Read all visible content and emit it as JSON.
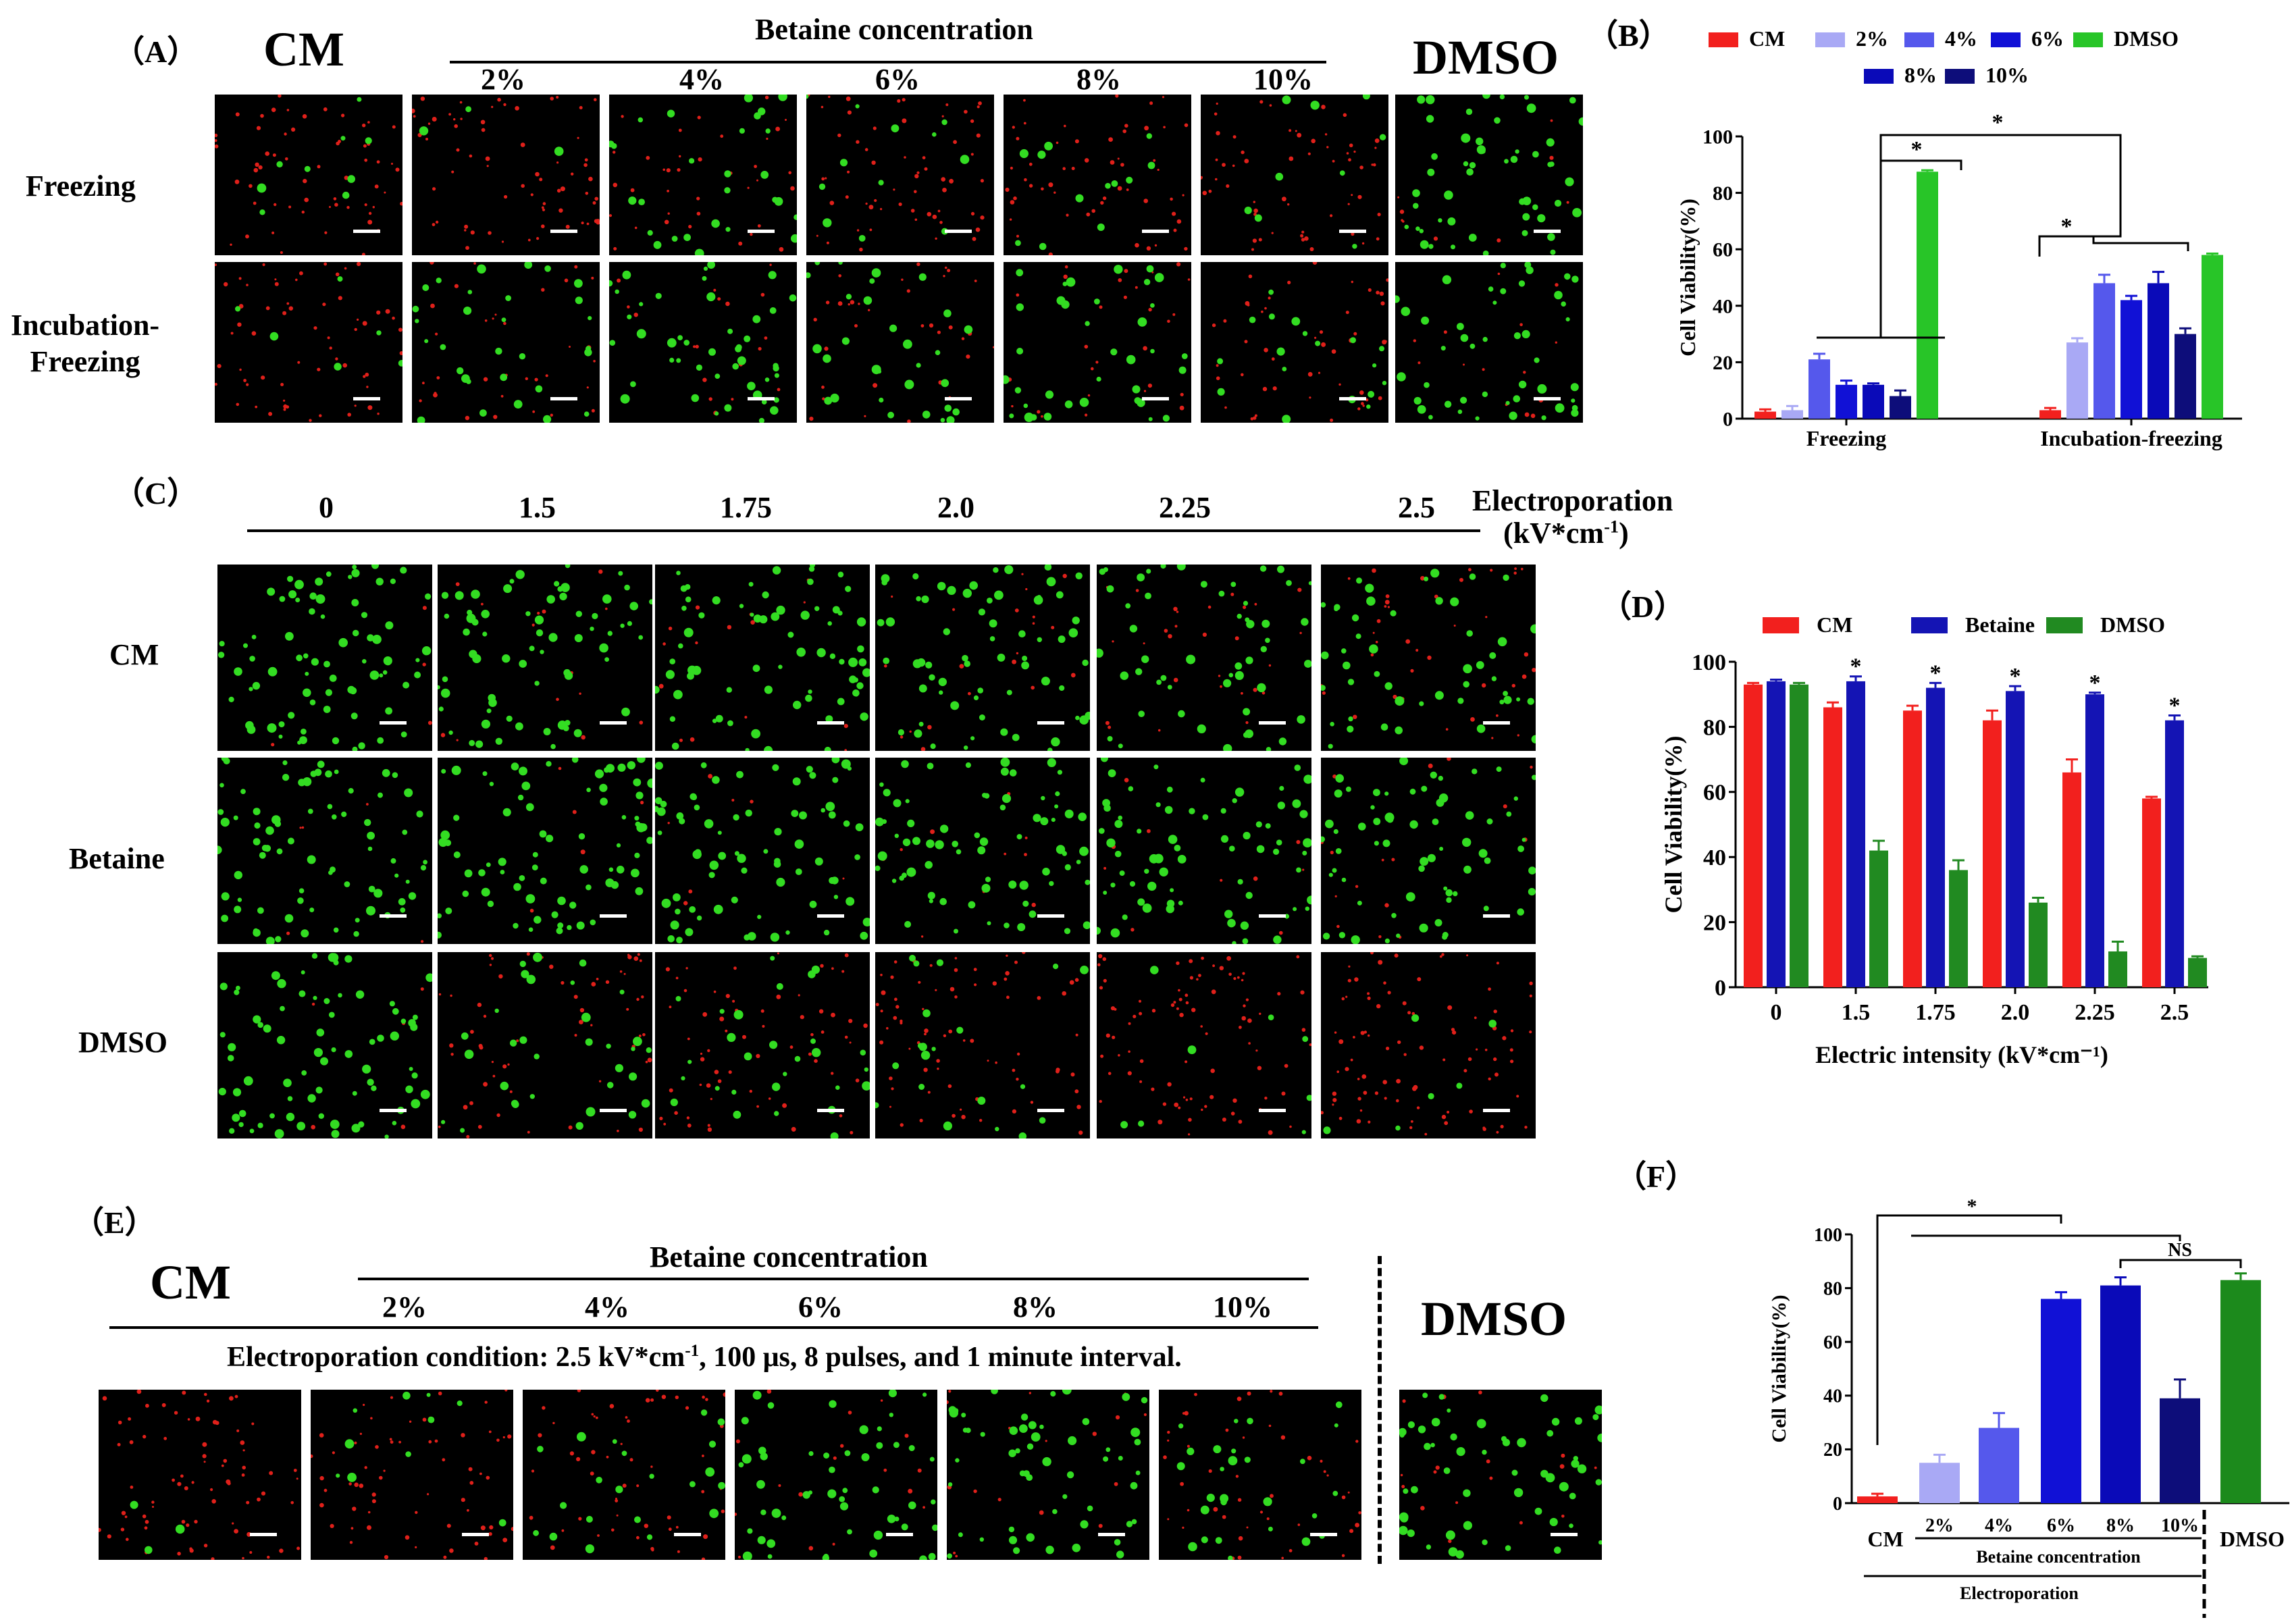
{
  "panel_labels": [
    "（A）",
    "（B）",
    "（C）",
    "（D）",
    "（E）",
    "（F）"
  ],
  "colors": {
    "cm_red": "#f2201e",
    "b2": "#a9a9f5",
    "b4": "#5558ec",
    "b6": "#1111d6",
    "b8": "#0a0ab8",
    "b10": "#0d0d7a",
    "betaine_blue": "#1414b4",
    "dmso_green_b": "#28c528",
    "dmso_green_d": "#218a21",
    "dmso_green_f": "#1c8a1c",
    "live_green": "#33dd22",
    "dead_red": "#e0201a"
  },
  "panel_a": {
    "cm": "CM",
    "betaine_header": "Betaine concentration",
    "concentrations": [
      "2%",
      "4%",
      "6%",
      "8%",
      "10%"
    ],
    "dmso": "DMSO",
    "row_labels": [
      "Freezing",
      "Incubation-\nFreezing"
    ],
    "images": [
      [
        {
          "live": 0.15,
          "dead": 0.8
        },
        {
          "live": 0.05,
          "dead": 0.9
        },
        {
          "live": 0.45,
          "dead": 0.5
        },
        {
          "live": 0.2,
          "dead": 0.8
        },
        {
          "live": 0.2,
          "dead": 0.75
        },
        {
          "live": 0.15,
          "dead": 0.8
        },
        {
          "live": 0.85,
          "dead": 0.15
        }
      ],
      [
        {
          "live": 0.1,
          "dead": 0.85
        },
        {
          "live": 0.5,
          "dead": 0.45
        },
        {
          "live": 0.75,
          "dead": 0.25
        },
        {
          "live": 0.5,
          "dead": 0.45
        },
        {
          "live": 0.6,
          "dead": 0.4
        },
        {
          "live": 0.3,
          "dead": 0.65
        },
        {
          "live": 0.75,
          "dead": 0.2
        }
      ]
    ]
  },
  "panel_c": {
    "field_labels": [
      "0",
      "1.5",
      "1.75",
      "2.0",
      "2.25",
      "2.5"
    ],
    "axis_title": "Electroporation",
    "axis_unit": "(kV*cm-1)",
    "row_labels": [
      "CM",
      "Betaine",
      "DMSO"
    ],
    "images": [
      [
        {
          "live": 0.95,
          "dead": 0.05
        },
        {
          "live": 0.85,
          "dead": 0.15
        },
        {
          "live": 0.85,
          "dead": 0.15
        },
        {
          "live": 0.8,
          "dead": 0.2
        },
        {
          "live": 0.65,
          "dead": 0.3
        },
        {
          "live": 0.6,
          "dead": 0.4
        }
      ],
      [
        {
          "live": 0.95,
          "dead": 0.05
        },
        {
          "live": 0.95,
          "dead": 0.05
        },
        {
          "live": 0.93,
          "dead": 0.07
        },
        {
          "live": 0.9,
          "dead": 0.1
        },
        {
          "live": 0.9,
          "dead": 0.1
        },
        {
          "live": 0.82,
          "dead": 0.18
        }
      ],
      [
        {
          "live": 0.95,
          "dead": 0.05
        },
        {
          "live": 0.4,
          "dead": 0.6
        },
        {
          "live": 0.35,
          "dead": 0.65
        },
        {
          "live": 0.25,
          "dead": 0.75
        },
        {
          "live": 0.1,
          "dead": 0.9
        },
        {
          "live": 0.08,
          "dead": 0.92
        }
      ]
    ]
  },
  "panel_e": {
    "cm": "CM",
    "betaine_header": "Betaine concentration",
    "concentrations": [
      "2%",
      "4%",
      "6%",
      "8%",
      "10%"
    ],
    "dmso": "DMSO",
    "condition": "Electroporation condition: 2.5 kV*cm-1, 100 μs, 8 pulses, and 1 minute interval.",
    "images": [
      {
        "live": 0.05,
        "dead": 0.9
      },
      {
        "live": 0.15,
        "dead": 0.8
      },
      {
        "live": 0.3,
        "dead": 0.65
      },
      {
        "live": 0.75,
        "dead": 0.2
      },
      {
        "live": 0.8,
        "dead": 0.2
      },
      {
        "live": 0.4,
        "dead": 0.55
      },
      {
        "live": 0.8,
        "dead": 0.2
      }
    ]
  },
  "chart_data": [
    {
      "panel": "B",
      "type": "bar",
      "ylabel": "Cell Viability(%)",
      "ylim": [
        0,
        100
      ],
      "yticks": [
        0,
        20,
        40,
        60,
        80,
        100
      ],
      "categories": [
        "Freezing",
        "Incubation-freezing"
      ],
      "legend": [
        "CM",
        "2%",
        "4%",
        "6%",
        "DMSO",
        "8%",
        "10%"
      ],
      "series": [
        {
          "name": "CM",
          "values": [
            2.5,
            3
          ],
          "err": [
            0.8,
            0.8
          ]
        },
        {
          "name": "2%",
          "values": [
            3,
            27
          ],
          "err": [
            1.5,
            1.5
          ]
        },
        {
          "name": "4%",
          "values": [
            21,
            48
          ],
          "err": [
            2,
            3
          ]
        },
        {
          "name": "6%",
          "values": [
            12,
            42
          ],
          "err": [
            1.5,
            1.5
          ]
        },
        {
          "name": "8%",
          "values": [
            12,
            48
          ],
          "err": [
            0.5,
            4
          ]
        },
        {
          "name": "10%",
          "values": [
            8,
            30
          ],
          "err": [
            2,
            2
          ]
        },
        {
          "name": "DMSO",
          "values": [
            87.5,
            58
          ],
          "err": [
            0.5,
            0.5
          ]
        }
      ],
      "annotations": [
        "*",
        "*",
        "*"
      ]
    },
    {
      "panel": "D",
      "type": "bar",
      "xlabel": "Electric intensity (kV*cm-1)",
      "ylabel": "Cell Viability(%)",
      "ylim": [
        0,
        100
      ],
      "yticks": [
        0,
        20,
        40,
        60,
        80,
        100
      ],
      "categories": [
        "0",
        "1.5",
        "1.75",
        "2.0",
        "2.25",
        "2.5"
      ],
      "legend": [
        "CM",
        "Betaine",
        "DMSO"
      ],
      "series": [
        {
          "name": "CM",
          "values": [
            93,
            86,
            85,
            82,
            66,
            58
          ],
          "err": [
            0.5,
            1.5,
            1.5,
            3,
            4,
            0.5
          ]
        },
        {
          "name": "Betaine",
          "values": [
            94,
            94,
            92,
            91,
            90,
            82
          ],
          "err": [
            0.5,
            1.5,
            1.5,
            1.5,
            0.5,
            1.5
          ]
        },
        {
          "name": "DMSO",
          "values": [
            93,
            42,
            36,
            26,
            11,
            9
          ],
          "err": [
            0.5,
            3,
            3,
            1.5,
            3,
            0.5
          ]
        }
      ],
      "annotations": [
        "*",
        "*",
        "*",
        "*",
        "*"
      ]
    },
    {
      "panel": "F",
      "type": "bar",
      "ylabel": "Cell Viability(%)",
      "ylim": [
        0,
        100
      ],
      "yticks": [
        0,
        20,
        40,
        60,
        80,
        100
      ],
      "categories": [
        "CM",
        "2%",
        "4%",
        "6%",
        "8%",
        "10%",
        "DMSO"
      ],
      "values": [
        2.5,
        15,
        28,
        76,
        81,
        39,
        83
      ],
      "err": [
        1,
        3,
        5.5,
        2.5,
        3,
        7,
        2.5
      ],
      "group_labels": [
        "Betaine concentration",
        "Electroporation"
      ],
      "annotations": [
        "*",
        "NS"
      ]
    }
  ]
}
